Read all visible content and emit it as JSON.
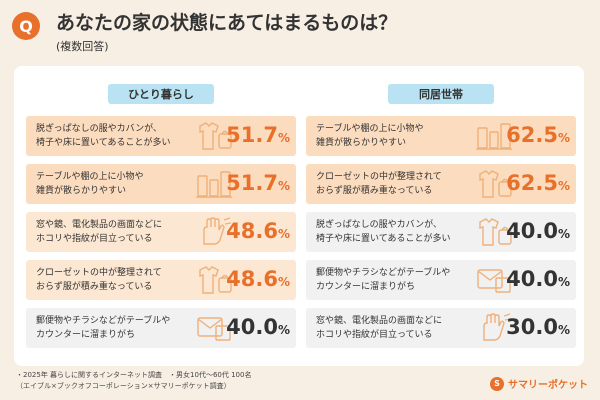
{
  "header": {
    "badge": "Q",
    "title": "あなたの家の状態にあてはまるものは？",
    "subtitle": "(複数回答)"
  },
  "chart_data": [
    {
      "type": "bar",
      "title": "ひとり暮らし",
      "categories": [
        "脱ぎっぱなしの服やカバンが、\n椅子や床に置いてあることが多い",
        "テーブルや棚の上に小物や\n雑貨が散らかりやすい",
        "窓や鏡、電化製品の画面などに\nホコリや指紋が目立っている",
        "クローゼットの中が整理されて\nおらず服が積み重なっている",
        "郵便物やチラシなどがテーブルや\nカウンターに溜まりがち"
      ],
      "values": [
        51.7,
        51.7,
        48.6,
        48.6,
        40.0
      ],
      "value_labels": [
        "51.7",
        "51.7",
        "48.6",
        "48.6",
        "40.0"
      ],
      "unit": "%",
      "icons": [
        "shirt-bag-icon",
        "shelf-items-icon",
        "hand-wipe-icon",
        "shirt-bag-icon",
        "mail-icon"
      ]
    },
    {
      "type": "bar",
      "title": "同居世帯",
      "categories": [
        "テーブルや棚の上に小物や\n雑貨が散らかりやすい",
        "クローゼットの中が整理されて\nおらず服が積み重なっている",
        "脱ぎっぱなしの服やカバンが、\n椅子や床に置いてあることが多い",
        "郵便物やチラシなどがテーブルや\nカウンターに溜まりがち",
        "窓や鏡、電化製品の画面などに\nホコリや指紋が目立っている"
      ],
      "values": [
        62.5,
        62.5,
        40.0,
        40.0,
        30.0
      ],
      "value_labels": [
        "62.5",
        "62.5",
        "40.0",
        "40.0",
        "30.0"
      ],
      "unit": "%",
      "icons": [
        "shelf-items-icon",
        "shirt-bag-icon",
        "shirt-bag-icon",
        "mail-icon",
        "hand-wipe-icon"
      ]
    }
  ],
  "colors": {
    "accent": "#e8702a",
    "header_bg": "#b9e3f2",
    "row_scale": [
      "#fbdcbf",
      "#fce7d2",
      "#fdf0e2",
      "#fef6ee"
    ],
    "row_low": "#f1f1f1"
  },
  "footnote": "・2025年 暮らしに関するインターネット調査　・男女10代〜60代 100名\n（エイブル×ブックオフコーポレーション×サマリーポケット調査）",
  "brand": {
    "name": "サマリーポケット",
    "mark": "S"
  }
}
